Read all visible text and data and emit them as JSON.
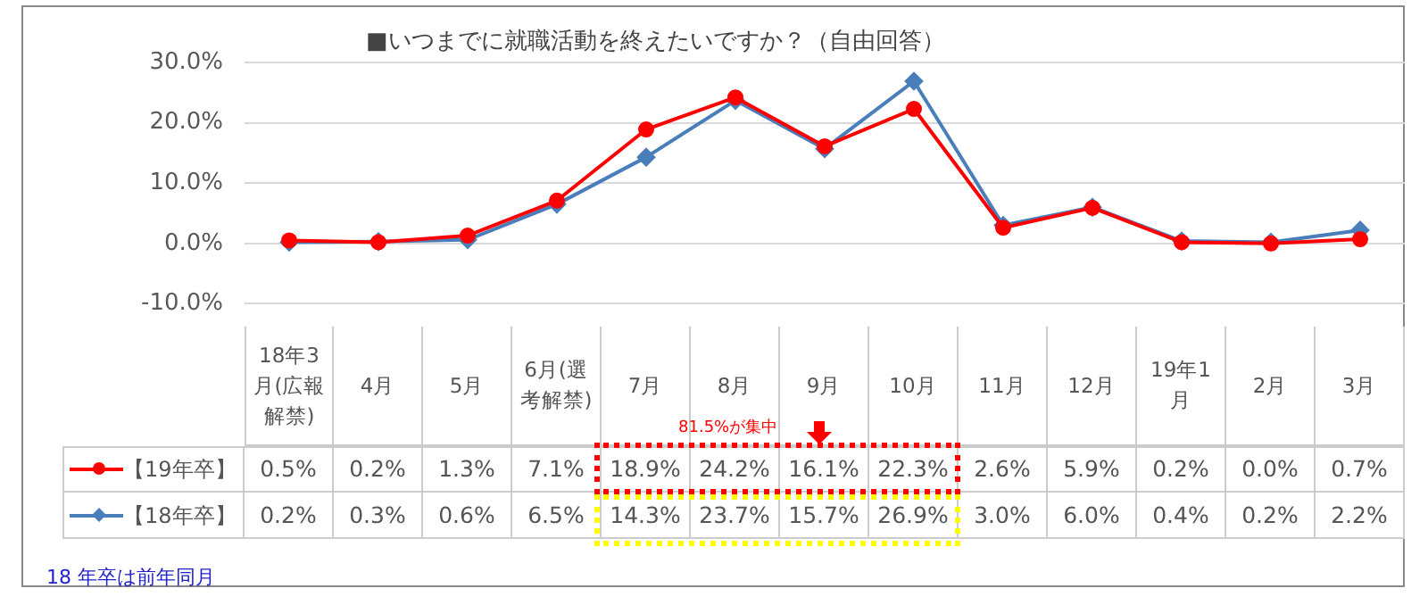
{
  "chart_data": {
    "type": "line",
    "title": "■いつまでに就職活動を終えたいですか？（自由回答）",
    "categories": [
      "18年3月(広報解禁)",
      "4月",
      "5月",
      "6月(選考解禁)",
      "7月",
      "8月",
      "9月",
      "10月",
      "11月",
      "12月",
      "19年1月",
      "2月",
      "3月"
    ],
    "series": [
      {
        "name": "【19年卒】",
        "color": "#ff0000",
        "marker": "circle",
        "values": [
          0.5,
          0.2,
          1.3,
          7.1,
          18.9,
          24.2,
          16.1,
          22.3,
          2.6,
          5.9,
          0.2,
          0.0,
          0.7
        ],
        "value_labels": [
          "0.5%",
          "0.2%",
          "1.3%",
          "7.1%",
          "18.9%",
          "24.2%",
          "16.1%",
          "22.3%",
          "2.6%",
          "5.9%",
          "0.2%",
          "0.0%",
          "0.7%"
        ]
      },
      {
        "name": "【18年卒】",
        "color": "#4a7ebb",
        "marker": "diamond",
        "values": [
          0.2,
          0.3,
          0.6,
          6.5,
          14.3,
          23.7,
          15.7,
          26.9,
          3.0,
          6.0,
          0.4,
          0.2,
          2.2
        ],
        "value_labels": [
          "0.2%",
          "0.3%",
          "0.6%",
          "6.5%",
          "14.3%",
          "23.7%",
          "15.7%",
          "26.9%",
          "3.0%",
          "6.0%",
          "0.4%",
          "0.2%",
          "2.2%"
        ]
      }
    ],
    "ylim": [
      -10,
      30
    ],
    "yticks": [
      {
        "value": -10,
        "label": "-10.0%"
      },
      {
        "value": 0,
        "label": "0.0%"
      },
      {
        "value": 10,
        "label": "10.0%"
      },
      {
        "value": 20,
        "label": "20.0%"
      },
      {
        "value": 30,
        "label": "30.0%"
      }
    ],
    "grid": "y",
    "legend": "bottom",
    "line_style": "solid",
    "annotations": [
      "81.5%が集中",
      "18 年卒は前年同月"
    ]
  }
}
